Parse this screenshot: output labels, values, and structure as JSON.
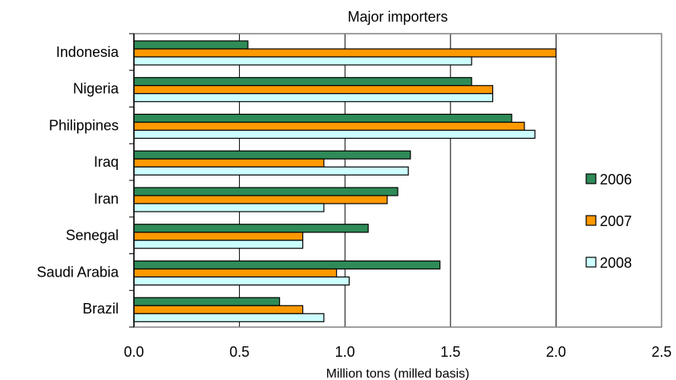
{
  "chart_data": {
    "type": "bar",
    "orientation": "horizontal",
    "title": "Major importers",
    "xlabel": "Million tons (milled basis)",
    "ylabel": "",
    "xlim": [
      0,
      2.5
    ],
    "xticks": [
      "0.0",
      "0.5",
      "1.0",
      "1.5",
      "2.0",
      "2.5"
    ],
    "grid": true,
    "legend_position": "right",
    "categories": [
      "Indonesia",
      "Nigeria",
      "Philippines",
      "Iraq",
      "Iran",
      "Senegal",
      "Saudi Arabia",
      "Brazil"
    ],
    "series": [
      {
        "name": "2006",
        "color": "#2e8b57",
        "values": [
          0.54,
          1.6,
          1.79,
          1.31,
          1.25,
          1.11,
          1.45,
          0.69
        ]
      },
      {
        "name": "2007",
        "color": "#ff9900",
        "values": [
          2.0,
          1.7,
          1.85,
          0.9,
          1.2,
          0.8,
          0.96,
          0.8
        ]
      },
      {
        "name": "2008",
        "color": "#ccffff",
        "values": [
          1.6,
          1.7,
          1.9,
          1.3,
          0.9,
          0.8,
          1.02,
          0.9
        ]
      }
    ]
  }
}
